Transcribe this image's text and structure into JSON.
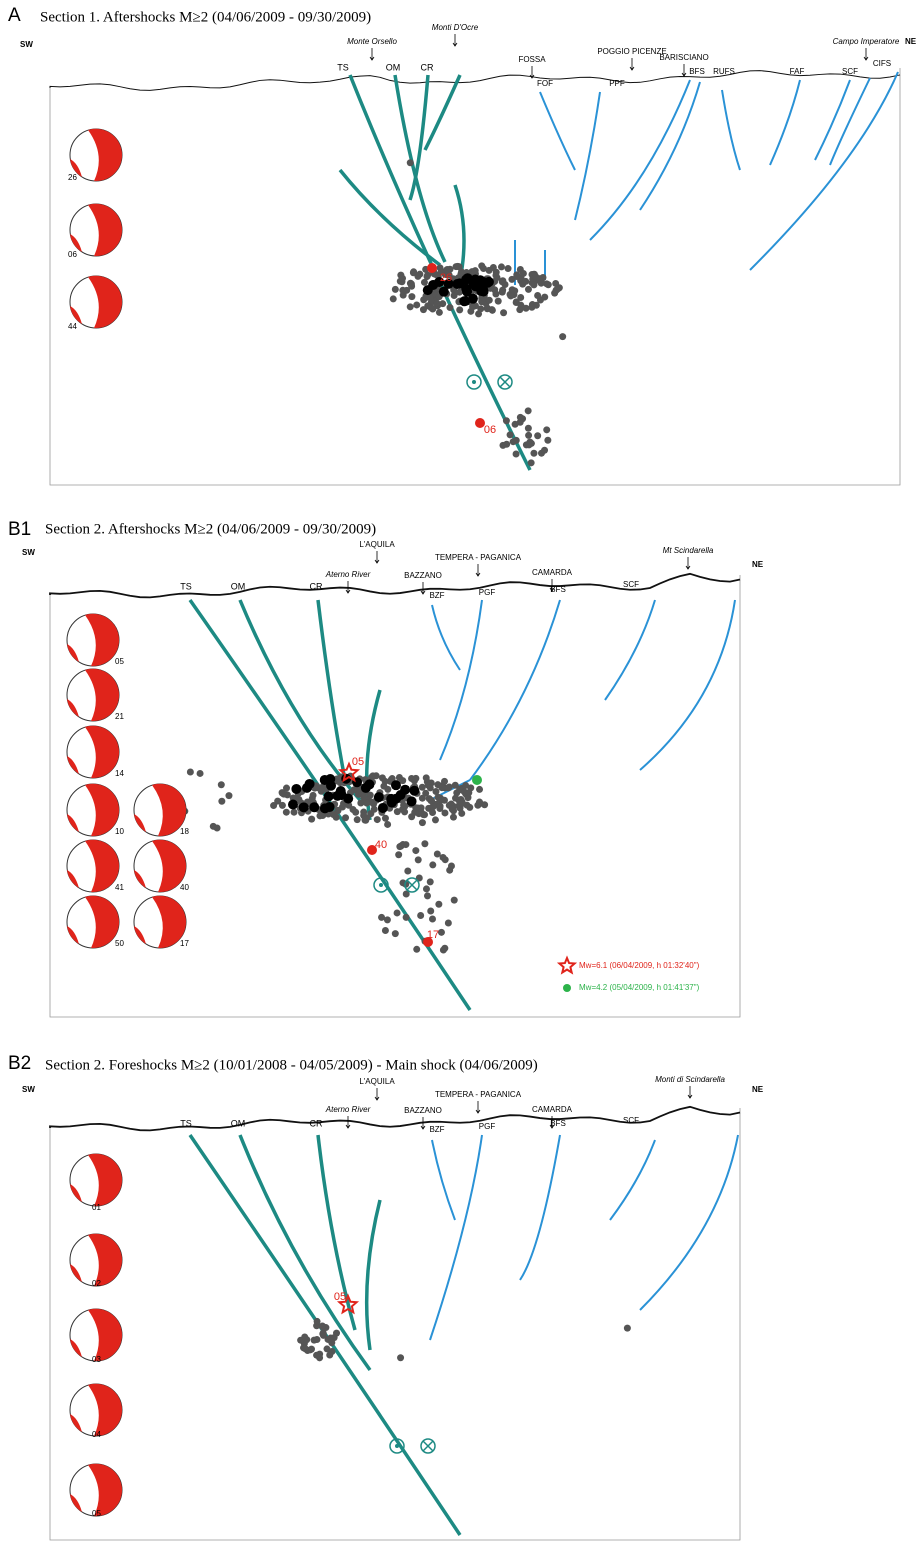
{
  "panels": [
    {
      "letter": "A",
      "title": "Section 1. Aftershocks M≥2 (04/06/2009 - 09/30/2009)",
      "sw": "SW",
      "ne": "NE",
      "places": [
        "Monte Orsello",
        "Monti D'Ocre",
        "FOSSA",
        "POGGIO PICENZE",
        "BARISCIANO",
        "Campo Imperatore"
      ],
      "faults": [
        "TS",
        "OM",
        "CR",
        "FOF",
        "PPF",
        "BFS",
        "RUFS",
        "FAF",
        "SCF",
        "CIFS"
      ],
      "mechanisms": [
        "26",
        "06",
        "44"
      ],
      "events": [
        "26",
        "06"
      ]
    },
    {
      "letter": "B1",
      "title": "Section 2. Aftershocks M≥2 (04/06/2009 - 09/30/2009)",
      "sw": "SW",
      "ne": "NE",
      "places": [
        "Aterno River",
        "L'AQUILA",
        "BAZZANO",
        "TEMPERA - PAGANICA",
        "CAMARDA",
        "Mt Scindarella"
      ],
      "faults": [
        "TS",
        "OM",
        "CR",
        "BZF",
        "PGF",
        "BFS",
        "SCF"
      ],
      "mechanisms": [
        "05",
        "21",
        "14",
        "10",
        "41",
        "50",
        "18",
        "40",
        "17"
      ],
      "events": [
        "05",
        "40",
        "17"
      ],
      "legend": [
        "Mw=6.1 (06/04/2009, h 01:32'40\")",
        "Mw=4.2 (05/04/2009, h 01:41'37\")"
      ]
    },
    {
      "letter": "B2",
      "title": "Section 2. Foreshocks M≥2 (10/01/2008 - 04/05/2009) - Main shock (04/06/2009)",
      "sw": "SW",
      "ne": "NE",
      "places": [
        "Aterno River",
        "L'AQUILA",
        "BAZZANO",
        "TEMPERA - PAGANICA",
        "CAMARDA",
        "Monti di Scindarella"
      ],
      "faults": [
        "TS",
        "OM",
        "CR",
        "BZF",
        "PGF",
        "BFS",
        "SCF"
      ],
      "mechanisms": [
        "01",
        "02",
        "03",
        "04",
        "05"
      ],
      "events": [
        "05"
      ]
    }
  ]
}
